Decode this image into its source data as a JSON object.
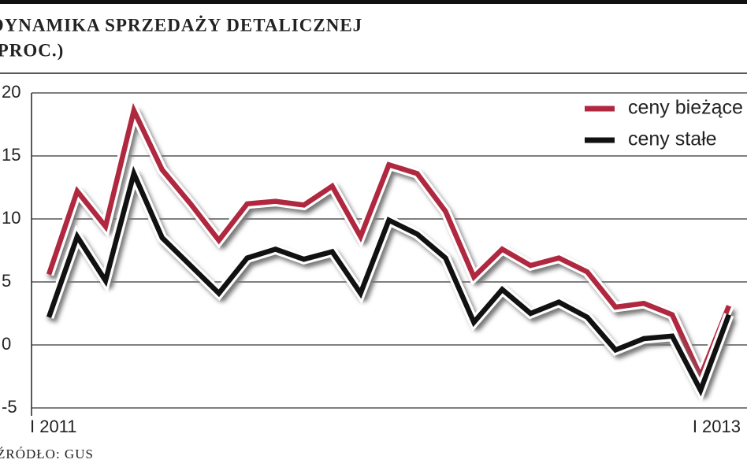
{
  "chart_data": {
    "type": "line",
    "title": "DYNAMIKA SPRZEDAŻY DETALICZNEJ",
    "subtitle": "(PROC.)",
    "source": "ŹRÓDŁO: GUS",
    "categories": [
      "I 2011",
      null,
      null,
      null,
      null,
      null,
      null,
      null,
      null,
      null,
      null,
      null,
      null,
      null,
      null,
      null,
      null,
      null,
      null,
      null,
      null,
      null,
      null,
      null,
      "I 2013"
    ],
    "series": [
      {
        "name": "ceny bieżące",
        "color": "#b0283f",
        "values": [
          5.6,
          12.2,
          9.4,
          18.6,
          13.9,
          11.2,
          8.3,
          11.2,
          11.4,
          11.1,
          12.6,
          8.6,
          14.3,
          13.6,
          10.6,
          5.4,
          7.6,
          6.3,
          6.9,
          5.8,
          3.0,
          3.3,
          2.4,
          -2.5,
          3.1
        ]
      },
      {
        "name": "ceny stałe",
        "color": "#111111",
        "values": [
          2.2,
          8.6,
          5.1,
          13.6,
          8.5,
          6.3,
          4.1,
          6.9,
          7.6,
          6.8,
          7.4,
          4.1,
          9.9,
          8.8,
          6.9,
          1.8,
          4.4,
          2.5,
          3.4,
          2.2,
          -0.4,
          0.5,
          0.7,
          -3.6,
          2.4
        ]
      }
    ],
    "ylim": [
      -5,
      20
    ],
    "yticks": [
      -5,
      0,
      5,
      10,
      15,
      20
    ],
    "grid": true,
    "legend": "top-right"
  }
}
